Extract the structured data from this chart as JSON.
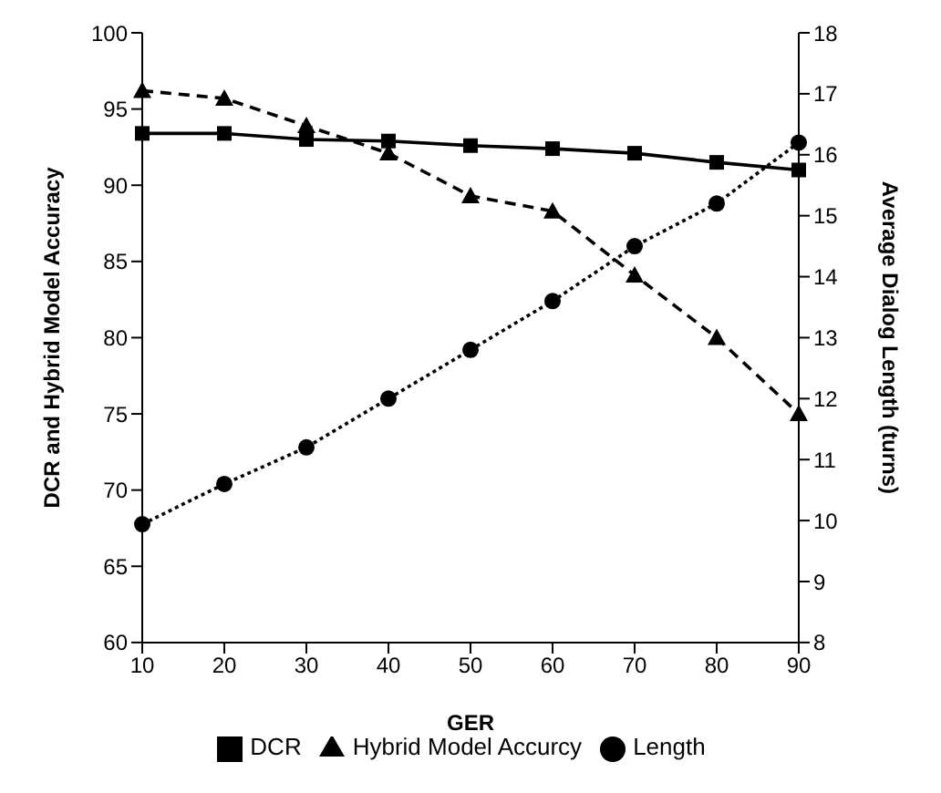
{
  "chart_data": {
    "type": "line",
    "xlabel": "GER",
    "ylabel": "DCR and Hybrid Model Accuracy",
    "y2label": "Average Dialog Length (turns)",
    "categories": [
      "10",
      "20",
      "30",
      "40",
      "50",
      "60",
      "70",
      "80",
      "90"
    ],
    "series": [
      {
        "name": "DCR",
        "color": "#000000",
        "marker": "square",
        "line_style": "solid",
        "values": [
          93.4,
          93.4,
          93.0,
          92.9,
          92.6,
          92.4,
          92.1,
          91.5,
          91.0
        ]
      },
      {
        "name": "Hybrid Model Accurcy",
        "color": "#000000",
        "marker": "triangle",
        "line_style": "dashed",
        "values": [
          96.2,
          95.7,
          93.9,
          92.1,
          89.3,
          88.3,
          84.1,
          80.0,
          75.0
        ]
      },
      {
        "name": "Length",
        "color": "#000000",
        "marker": "circle",
        "line_style": "dotted",
        "axis": "y2",
        "values": [
          9.94,
          10.6,
          11.2,
          12.0,
          12.8,
          13.6,
          14.5,
          15.2,
          16.2
        ]
      }
    ],
    "ylim": [
      60,
      100
    ],
    "yticks": [
      60,
      65,
      70,
      75,
      80,
      85,
      90,
      95,
      100
    ],
    "y2lim": [
      8,
      18
    ],
    "y2ticks": [
      8,
      9,
      10,
      11,
      12,
      13,
      14,
      15,
      16,
      17,
      18
    ],
    "grid": false,
    "legend": "bottom"
  }
}
